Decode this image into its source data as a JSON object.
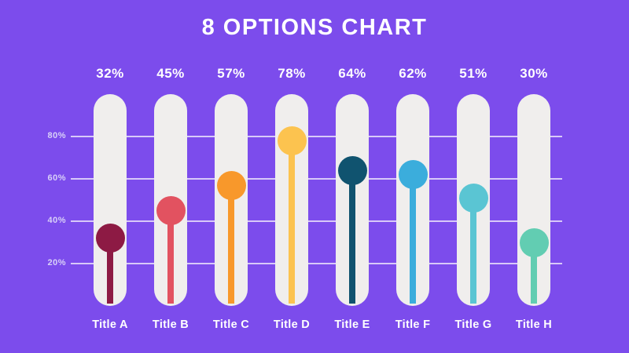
{
  "page": {
    "title": "8 OPTIONS CHART"
  },
  "colors": {
    "background": "#7C4CEC",
    "track_pill": "#F0EEED",
    "gridline": "rgba(255,255,255,0.7)",
    "title_text": "#FFFFFF",
    "value_text": "#FFFFFF",
    "category_text": "#FFFFFF",
    "axis_tick_text": "#D9D1F8"
  },
  "chart_data": {
    "type": "lollipop-bar",
    "title": "8 OPTIONS CHART",
    "categories": [
      "Title A",
      "Title B",
      "Title C",
      "Title D",
      "Title E",
      "Title F",
      "Title G",
      "Title H"
    ],
    "values": [
      32,
      45,
      57,
      78,
      64,
      62,
      51,
      30
    ],
    "value_labels": [
      "32%",
      "45%",
      "57%",
      "78%",
      "64%",
      "62%",
      "51%",
      "30%"
    ],
    "point_colors": [
      "#8D1A44",
      "#E25260",
      "#F8982B",
      "#FCC34F",
      "#10536F",
      "#3BADDC",
      "#5AC5D3",
      "#62CDB2"
    ],
    "xlabel": "",
    "ylabel": "",
    "ylim": [
      0,
      100
    ],
    "yticks": [
      20,
      40,
      60,
      80
    ],
    "ytick_labels": [
      "20%",
      "40%",
      "60%",
      "80%"
    ],
    "grid": true,
    "legend": false
  }
}
